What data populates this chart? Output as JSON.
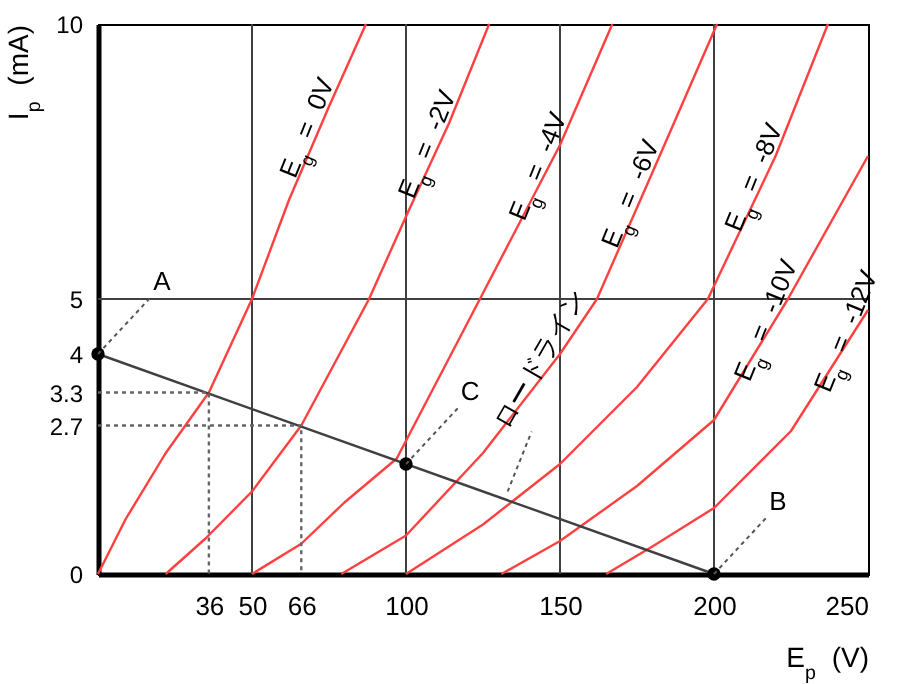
{
  "chart_data": {
    "type": "line",
    "xlabel": "E$_{p}$ (V)",
    "ylabel": "I$_{p}$ (mA)",
    "xlim": [
      0,
      250
    ],
    "ylim": [
      0,
      10
    ],
    "xticks": [
      36,
      50,
      66,
      100,
      150,
      200,
      250
    ],
    "yticks": [
      0,
      2.7,
      3.3,
      4,
      5,
      10
    ],
    "grid": false,
    "marker": "none",
    "series": [
      {
        "name": "E$_{g}$ = 0V",
        "color": "#ff4040",
        "x": [
          0,
          9,
          22,
          36,
          50,
          62,
          75,
          87
        ],
        "values": [
          0,
          1,
          2.2,
          3.3,
          5,
          6.8,
          8.5,
          10
        ]
      },
      {
        "name": "E$_{g}$ = -2V",
        "color": "#ff4040",
        "x": [
          22,
          35,
          50,
          66,
          88,
          100,
          114,
          127
        ],
        "values": [
          0,
          0.65,
          1.5,
          2.7,
          5,
          6.5,
          8.2,
          10
        ]
      },
      {
        "name": "E$_{g}$ = -4V",
        "color": "#ff4040",
        "x": [
          50,
          66,
          80,
          97,
          124,
          150,
          167
        ],
        "values": [
          0,
          0.55,
          1.3,
          2.1,
          5,
          7.8,
          10
        ]
      },
      {
        "name": "E$_{g}$ = -6V",
        "color": "#ff4040",
        "x": [
          79,
          100,
          125,
          150,
          162,
          180,
          201
        ],
        "values": [
          0,
          0.7,
          2.2,
          4,
          5,
          7.3,
          10
        ]
      },
      {
        "name": "E$_{g}$ = -8V",
        "color": "#ff4040",
        "x": [
          100,
          125,
          150,
          175,
          198,
          220,
          237
        ],
        "values": [
          0,
          0.9,
          2,
          3.4,
          5,
          7.6,
          10
        ]
      },
      {
        "name": "E$_{g}$ = -10V",
        "color": "#ff4040",
        "x": [
          131,
          150,
          175,
          200,
          224,
          250
        ],
        "values": [
          0,
          0.6,
          1.6,
          2.8,
          5,
          7.6
        ]
      },
      {
        "name": "E$_{g}$ = -12V",
        "color": "#ff4040",
        "x": [
          165,
          180,
          200,
          225,
          250
        ],
        "values": [
          0,
          0.5,
          1.2,
          2.6,
          4.8
        ]
      },
      {
        "type": "line",
        "color": "#404040",
        "x": [
          0,
          200
        ],
        "values": [
          4,
          0
        ]
      },
      {
        "type": "line",
        "color": "#666666",
        "line_style": "dotted",
        "x": [
          0,
          36,
          36
        ],
        "values": [
          3.3,
          3.3,
          0
        ]
      },
      {
        "type": "line",
        "color": "#666666",
        "line_style": "dotted",
        "x": [
          0,
          66,
          66
        ],
        "values": [
          2.7,
          2.7,
          0
        ]
      },
      {
        "type": "scatter",
        "marker": "circle",
        "color": "#000000",
        "x": [
          0,
          100,
          200
        ],
        "values": [
          4,
          2,
          0
        ]
      }
    ],
    "ref_lines": [
      {
        "axis": "x",
        "value": 50,
        "color": "#404040"
      },
      {
        "axis": "x",
        "value": 100,
        "color": "#404040"
      },
      {
        "axis": "x",
        "value": 150,
        "color": "#404040"
      },
      {
        "axis": "x",
        "value": 200,
        "color": "#404040"
      },
      {
        "axis": "y",
        "value": 5,
        "color": "#404040"
      }
    ],
    "annotations": [
      {
        "text": "A",
        "x": 0,
        "y": 4
      },
      {
        "text": "C",
        "x": 100,
        "y": 2
      },
      {
        "text": "B",
        "x": 200,
        "y": 0
      },
      {
        "text": "ロードライン",
        "x": 133,
        "y": 1.5
      }
    ]
  }
}
